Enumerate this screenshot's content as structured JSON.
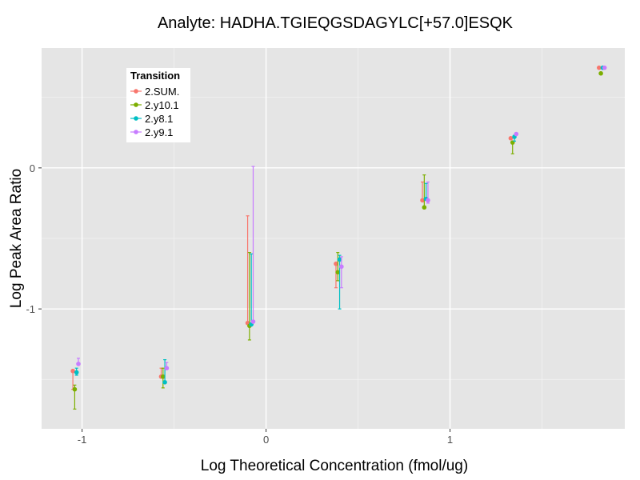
{
  "chart_data": {
    "type": "scatter",
    "title": "Analyte: HADHA.TGIEQGSDAGYLC[+57.0]ESQK",
    "xlabel": "Log Theoretical Concentration (fmol/ug)",
    "ylabel": "Log Peak Area Ratio",
    "xlim": [
      -1.22,
      1.95
    ],
    "ylim": [
      -1.85,
      0.85
    ],
    "x_ticks": [
      -1,
      0,
      1
    ],
    "x_tick_labels": [
      "-1",
      "0",
      "1"
    ],
    "y_ticks": [
      -1,
      0
    ],
    "y_tick_labels": [
      "-1",
      "0"
    ],
    "grid": true,
    "legend": {
      "title": "Transition",
      "placement": "top-left"
    },
    "series": [
      {
        "name": "2.SUM.",
        "color": "#F8766D",
        "points": [
          {
            "x": -1.05,
            "y": -1.44,
            "lo": -1.57,
            "hi": -1.44
          },
          {
            "x": -0.57,
            "y": -1.48,
            "lo": -1.48,
            "hi": -1.42
          },
          {
            "x": -0.1,
            "y": -1.1,
            "lo": -1.1,
            "hi": -0.34
          },
          {
            "x": 0.38,
            "y": -0.68,
            "lo": -0.85,
            "hi": -0.68
          },
          {
            "x": 0.85,
            "y": -0.23,
            "lo": -0.23,
            "hi": -0.1
          },
          {
            "x": 1.33,
            "y": 0.21,
            "lo": 0.21,
            "hi": 0.21
          },
          {
            "x": 1.81,
            "y": 0.71,
            "lo": 0.71,
            "hi": 0.71
          }
        ]
      },
      {
        "name": "2.y10.1",
        "color": "#7CAE00",
        "points": [
          {
            "x": -1.04,
            "y": -1.57,
            "lo": -1.71,
            "hi": -1.54
          },
          {
            "x": -0.56,
            "y": -1.48,
            "lo": -1.56,
            "hi": -1.42
          },
          {
            "x": -0.09,
            "y": -1.12,
            "lo": -1.22,
            "hi": -0.6
          },
          {
            "x": 0.39,
            "y": -0.74,
            "lo": -0.8,
            "hi": -0.6
          },
          {
            "x": 0.86,
            "y": -0.28,
            "lo": -0.28,
            "hi": -0.05
          },
          {
            "x": 1.34,
            "y": 0.18,
            "lo": 0.1,
            "hi": 0.18
          },
          {
            "x": 1.82,
            "y": 0.67,
            "lo": 0.67,
            "hi": 0.67
          }
        ]
      },
      {
        "name": "2.y8.1",
        "color": "#00BFC4",
        "points": [
          {
            "x": -1.03,
            "y": -1.45,
            "lo": -1.47,
            "hi": -1.42
          },
          {
            "x": -0.55,
            "y": -1.52,
            "lo": -1.52,
            "hi": -1.36
          },
          {
            "x": -0.08,
            "y": -1.11,
            "lo": -1.11,
            "hi": -0.61
          },
          {
            "x": 0.4,
            "y": -0.65,
            "lo": -1.0,
            "hi": -0.62
          },
          {
            "x": 0.87,
            "y": -0.22,
            "lo": -0.22,
            "hi": -0.11
          },
          {
            "x": 1.35,
            "y": 0.22,
            "lo": 0.19,
            "hi": 0.23
          },
          {
            "x": 1.83,
            "y": 0.71,
            "lo": 0.71,
            "hi": 0.71
          }
        ]
      },
      {
        "name": "2.y9.1",
        "color": "#C77CFF",
        "points": [
          {
            "x": -1.02,
            "y": -1.39,
            "lo": -1.39,
            "hi": -1.35
          },
          {
            "x": -0.54,
            "y": -1.42,
            "lo": -1.42,
            "hi": -1.38
          },
          {
            "x": -0.07,
            "y": -1.09,
            "lo": -1.09,
            "hi": 0.01
          },
          {
            "x": 0.41,
            "y": -0.7,
            "lo": -0.85,
            "hi": -0.63
          },
          {
            "x": 0.88,
            "y": -0.23,
            "lo": -0.25,
            "hi": -0.1
          },
          {
            "x": 1.36,
            "y": 0.24,
            "lo": 0.24,
            "hi": 0.24
          },
          {
            "x": 1.84,
            "y": 0.71,
            "lo": 0.71,
            "hi": 0.71
          }
        ]
      }
    ]
  }
}
